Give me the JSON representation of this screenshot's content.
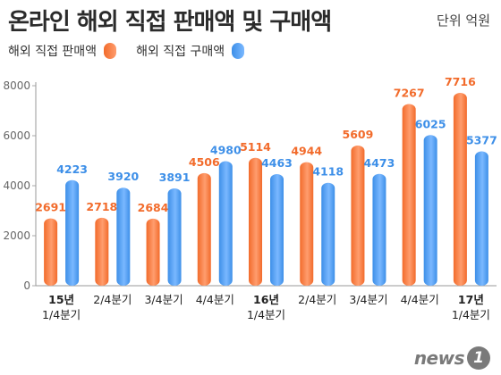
{
  "header": {
    "title": "온라인 해외 직접 판매액 및 구매액",
    "unit": "단위  억원"
  },
  "colors": {
    "sales": "#f26b2b",
    "purchase": "#3d8fe8"
  },
  "logo": {
    "text": "news",
    "mark": "1"
  },
  "chart_data": {
    "type": "bar",
    "title": "온라인 해외 직접 판매액 및 구매액",
    "unit": "단위  억원",
    "ylim": [
      0,
      8000
    ],
    "yticks": [
      0,
      2000,
      4000,
      6000,
      8000
    ],
    "grid": false,
    "legend_position": "top-left",
    "categories": [
      [
        "15년",
        "1/4분기"
      ],
      [
        "2/4분기"
      ],
      [
        "3/4분기"
      ],
      [
        "4/4분기"
      ],
      [
        "16년",
        "1/4분기"
      ],
      [
        "2/4분기"
      ],
      [
        "3/4분기"
      ],
      [
        "4/4분기"
      ],
      [
        "17년",
        "1/4분기"
      ]
    ],
    "series": [
      {
        "name": "해외 직접 판매액",
        "values": [
          2691,
          2718,
          2684,
          4506,
          5114,
          4944,
          5609,
          7267,
          7716
        ]
      },
      {
        "name": "해외 직접 구매액",
        "values": [
          4223,
          3920,
          3891,
          4980,
          4463,
          4118,
          4473,
          6025,
          5377
        ]
      }
    ]
  }
}
